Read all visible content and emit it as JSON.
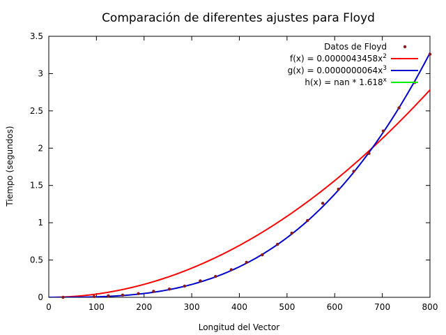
{
  "chart_data": {
    "type": "scatter",
    "title": "Comparación de diferentes ajustes para Floyd",
    "xlabel": "Longitud del Vector",
    "ylabel": "Tiempo (segundos)",
    "xlim": [
      0,
      800
    ],
    "ylim": [
      0,
      3.5
    ],
    "x_ticks": [
      "0",
      "100",
      "200",
      "300",
      "400",
      "500",
      "600",
      "700",
      "800"
    ],
    "y_ticks": [
      "0",
      "0.5",
      "1",
      "1.5",
      "2",
      "2.5",
      "3",
      "3.5"
    ],
    "grid": false,
    "legend_position": "top-right",
    "series": [
      {
        "name": "Datos de Floyd",
        "kind": "points",
        "color": "#8b1a1a",
        "x": [
          30,
          95,
          125,
          155,
          188,
          220,
          253,
          285,
          318,
          350,
          383,
          415,
          448,
          480,
          510,
          543,
          575,
          608,
          640,
          672,
          702,
          735,
          768,
          800
        ],
        "y": [
          0.0,
          0.01,
          0.02,
          0.03,
          0.05,
          0.08,
          0.11,
          0.15,
          0.22,
          0.28,
          0.37,
          0.47,
          0.57,
          0.71,
          0.86,
          1.03,
          1.26,
          1.45,
          1.69,
          1.93,
          2.23,
          2.54,
          2.88,
          3.26
        ]
      },
      {
        "name_parts": [
          "f(x) = 0.0000043458x",
          "2"
        ],
        "kind": "line",
        "color": "#ff0000",
        "coefficient": 4.3458e-06,
        "exponent": 2
      },
      {
        "name_parts": [
          "g(x) = 0.0000000064x",
          "3"
        ],
        "kind": "line",
        "color": "#0000cc",
        "coefficient": 6.4e-09,
        "exponent": 3
      },
      {
        "name_parts": [
          "h(x) = nan * 1.618",
          "x"
        ],
        "kind": "line",
        "color": "#00ee00",
        "plotted": false
      }
    ]
  }
}
